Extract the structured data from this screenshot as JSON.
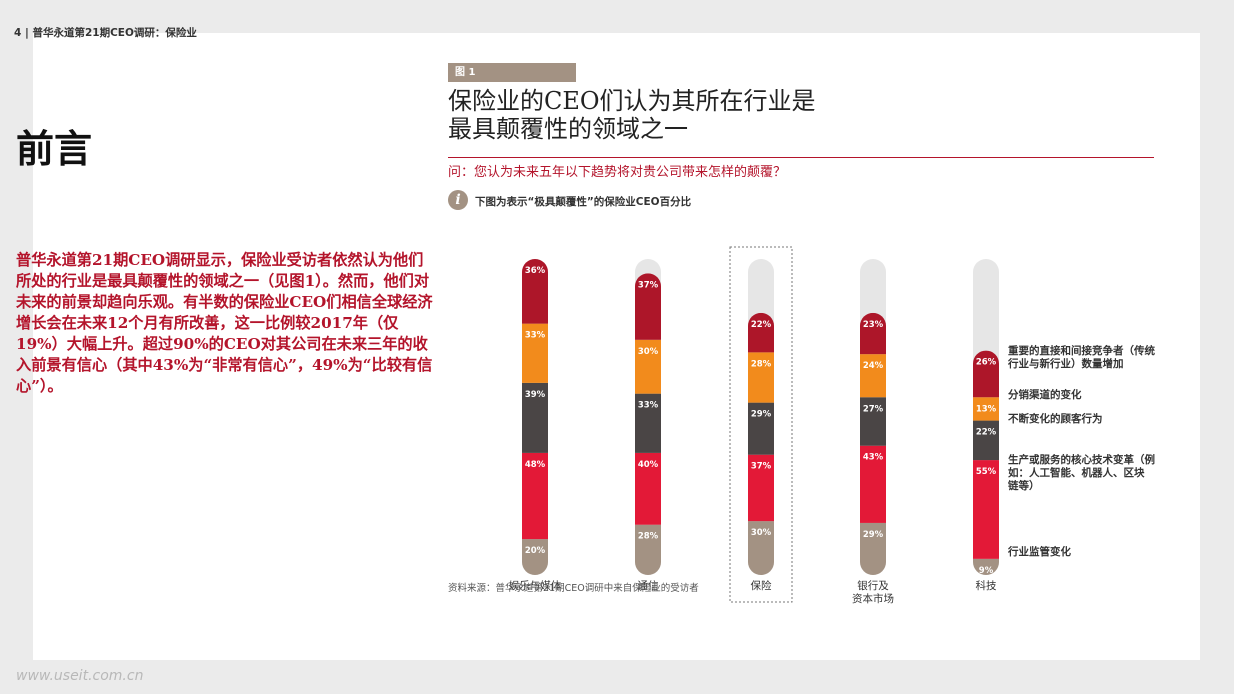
{
  "header": "4  |  普华永道第21期CEO调研：保险业",
  "section_title": "前言",
  "intro": "普华永道第21期CEO调研显示，保险业受访者依然认为他们所处的行业是最具颠覆性的领域之一（见图1）。然而，他们对未来的前景却趋向乐观。有半数的保险业CEO们相信全球经济增长会在未来12个月有所改善，这一比例较2017年（仅19%）大幅上升。超过90%的CEO对其公司在未来三年的收入前景有信心（其中43%为“非常有信心”，49%为“比较有信心”）。",
  "figure": {
    "label": "图 1",
    "title_line1": "保险业的CEO们认为其所在行业是",
    "title_line2": "最具颠覆性的领域之一",
    "question": "问：您认为未来五年以下趋势将对贵公司带来怎样的颠覆？",
    "note_icon": "i",
    "note": "下图为表示“极具颠覆性”的保险业CEO百分比",
    "source": "资料来源：普华永道第21期CEO调研中来自保险业的受访者"
  },
  "watermark": "www.useit.com.cn",
  "chart_data": {
    "type": "stacked-bar",
    "categories": [
      "娱乐与媒体",
      "通信",
      "保险",
      "银行及\n资本市场",
      "科技"
    ],
    "highlighted_category": "保险",
    "series": [
      {
        "name": "行业监管变化",
        "color": "#a39283",
        "values": [
          20,
          28,
          30,
          29,
          9
        ]
      },
      {
        "name": "生产或服务的核心技术变革（例如：人工智能、机器人、区块链等）",
        "color": "#e31937",
        "values": [
          48,
          40,
          37,
          43,
          55
        ]
      },
      {
        "name": "不断变化的顾客行为",
        "color": "#4a4545",
        "values": [
          39,
          33,
          29,
          27,
          22
        ]
      },
      {
        "name": "分销渠道的变化",
        "color": "#f28b1c",
        "values": [
          33,
          30,
          28,
          24,
          13
        ]
      },
      {
        "name": "重要的直接和间接竞争者（传统行业与新行业）数量增加",
        "color": "#ad1629",
        "values": [
          36,
          37,
          22,
          23,
          26
        ]
      }
    ],
    "legend_lines": [
      [
        "重要的直接和间接竞争者（传统",
        "行业与新行业）数量增加"
      ],
      [
        "分销渠道的变化"
      ],
      [
        "不断变化的顾客行为"
      ],
      [
        "生产或服务的核心技术变革（例",
        "如：人工智能、机器人、区块",
        "链等）"
      ],
      [
        "行业监管变化"
      ]
    ],
    "ymax": 176,
    "background_color": "#e6e6e6"
  }
}
